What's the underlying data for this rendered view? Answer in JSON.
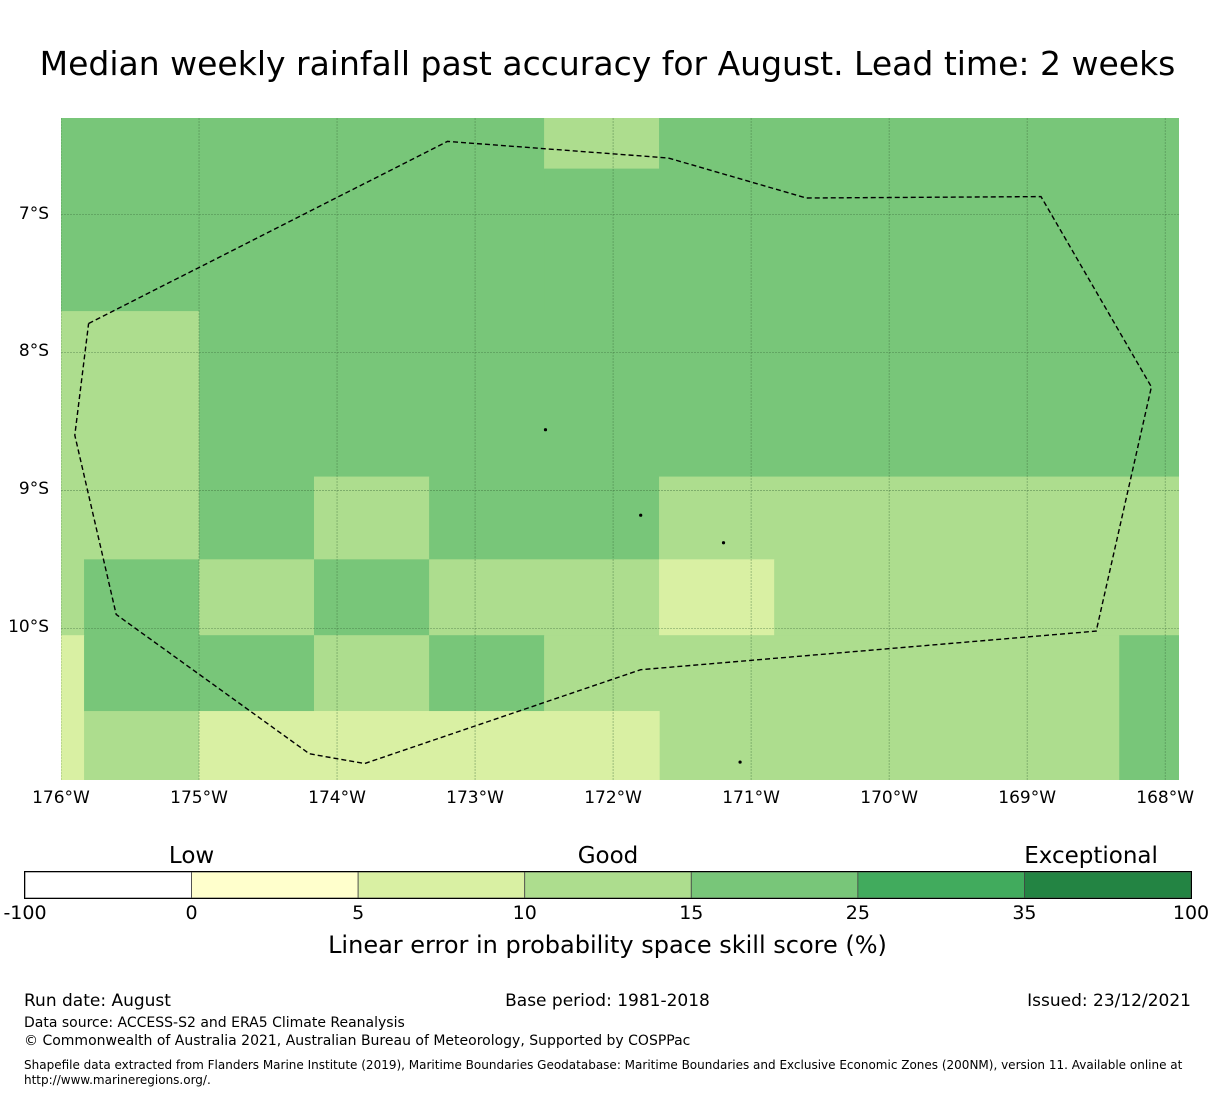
{
  "title": "Median weekly rainfall past accuracy for August. Lead time: 2 weeks",
  "map": {
    "lon_range": [
      -176,
      -167.9
    ],
    "lat_range": [
      -11.1,
      -6.3
    ],
    "y_ticks": [
      {
        "value": -7,
        "label": "7°S"
      },
      {
        "value": -8,
        "label": "8°S"
      },
      {
        "value": -9,
        "label": "9°S"
      },
      {
        "value": -10,
        "label": "10°S"
      }
    ],
    "x_ticks": [
      {
        "value": -176,
        "label": "176°W"
      },
      {
        "value": -175,
        "label": "175°W"
      },
      {
        "value": -174,
        "label": "174°W"
      },
      {
        "value": -173,
        "label": "173°W"
      },
      {
        "value": -172,
        "label": "172°W"
      },
      {
        "value": -171,
        "label": "171°W"
      },
      {
        "value": -170,
        "label": "170°W"
      },
      {
        "value": -169,
        "label": "169°W"
      },
      {
        "value": -168,
        "label": "168°W"
      }
    ],
    "grid": true,
    "cells": [
      {
        "lon": [
          -176,
          -172.5
        ],
        "lat": [
          -7.7,
          -6.3
        ],
        "cls": 4
      },
      {
        "lon": [
          -172.5,
          -171.667
        ],
        "lat": [
          -6.667,
          -6.3
        ],
        "cls": 3
      },
      {
        "lon": [
          -171.667,
          -167.9
        ],
        "lat": [
          -7.7,
          -6.3
        ],
        "cls": 4
      },
      {
        "lon": [
          -172.5,
          -171.667
        ],
        "lat": [
          -7.7,
          -6.667
        ],
        "cls": 4
      },
      {
        "lon": [
          -176,
          -175
        ],
        "lat": [
          -9.5,
          -7.7
        ],
        "cls": 3
      },
      {
        "lon": [
          -175,
          -167.9
        ],
        "lat": [
          -8.9,
          -7.7
        ],
        "cls": 4
      },
      {
        "lon": [
          -175,
          -174.167
        ],
        "lat": [
          -9.5,
          -8.9
        ],
        "cls": 4
      },
      {
        "lon": [
          -174.167,
          -173.333
        ],
        "lat": [
          -9.5,
          -8.9
        ],
        "cls": 3
      },
      {
        "lon": [
          -173.333,
          -171.667
        ],
        "lat": [
          -9.5,
          -8.9
        ],
        "cls": 4
      },
      {
        "lon": [
          -171.667,
          -167.9
        ],
        "lat": [
          -9.5,
          -8.9
        ],
        "cls": 3
      },
      {
        "lon": [
          -176,
          -175.833
        ],
        "lat": [
          -10.05,
          -9.5
        ],
        "cls": 3
      },
      {
        "lon": [
          -175.833,
          -175
        ],
        "lat": [
          -10.05,
          -9.5
        ],
        "cls": 4
      },
      {
        "lon": [
          -175,
          -174.167
        ],
        "lat": [
          -10.05,
          -9.5
        ],
        "cls": 3
      },
      {
        "lon": [
          -174.167,
          -173.333
        ],
        "lat": [
          -10.05,
          -9.5
        ],
        "cls": 4
      },
      {
        "lon": [
          -173.333,
          -171.667
        ],
        "lat": [
          -10.05,
          -9.5
        ],
        "cls": 3
      },
      {
        "lon": [
          -171.667,
          -170.833
        ],
        "lat": [
          -10.05,
          -9.5
        ],
        "cls": 2
      },
      {
        "lon": [
          -170.833,
          -167.9
        ],
        "lat": [
          -10.05,
          -9.5
        ],
        "cls": 3
      },
      {
        "lon": [
          -176,
          -175.833
        ],
        "lat": [
          -11.1,
          -10.05
        ],
        "cls": 2
      },
      {
        "lon": [
          -175.833,
          -174.167
        ],
        "lat": [
          -10.6,
          -10.05
        ],
        "cls": 4
      },
      {
        "lon": [
          -174.167,
          -173.333
        ],
        "lat": [
          -10.6,
          -10.05
        ],
        "cls": 3
      },
      {
        "lon": [
          -173.333,
          -172.5
        ],
        "lat": [
          -10.6,
          -10.05
        ],
        "cls": 4
      },
      {
        "lon": [
          -172.5,
          -168.333
        ],
        "lat": [
          -11.1,
          -10.05
        ],
        "cls": 3
      },
      {
        "lon": [
          -168.333,
          -167.9
        ],
        "lat": [
          -11.1,
          -10.05
        ],
        "cls": 4
      },
      {
        "lon": [
          -175.833,
          -175
        ],
        "lat": [
          -11.1,
          -10.6
        ],
        "cls": 3
      },
      {
        "lon": [
          -175,
          -172.5
        ],
        "lat": [
          -11.1,
          -10.6
        ],
        "cls": 2
      },
      {
        "lon": [
          -172.5,
          -171.667
        ],
        "lat": [
          -11.1,
          -10.6
        ],
        "cls": 2
      }
    ],
    "eez_boundary": [
      [
        -175.8,
        -7.79
      ],
      [
        -173.2,
        -6.47
      ],
      [
        -171.6,
        -6.59
      ],
      [
        -170.6,
        -6.88
      ],
      [
        -168.9,
        -6.87
      ],
      [
        -168.1,
        -8.25
      ],
      [
        -168.5,
        -10.02
      ],
      [
        -171.8,
        -10.3
      ],
      [
        -173.8,
        -10.98
      ],
      [
        -174.2,
        -10.91
      ],
      [
        -175.6,
        -9.9
      ],
      [
        -175.9,
        -8.6
      ],
      [
        -175.8,
        -7.79
      ]
    ],
    "islands": [
      {
        "lon": -172.49,
        "lat": -8.56
      },
      {
        "lon": -171.8,
        "lat": -9.18
      },
      {
        "lon": -171.2,
        "lat": -9.38
      },
      {
        "lon": -171.08,
        "lat": -10.97
      }
    ]
  },
  "colorbar": {
    "categories": [
      {
        "label": "Low",
        "at": 1
      },
      {
        "label": "Good",
        "at": 3.5
      },
      {
        "label": "Exceptional",
        "at": 6.4
      }
    ],
    "ticks": [
      "-100",
      "0",
      "5",
      "10",
      "15",
      "25",
      "35",
      "100"
    ],
    "colors": [
      "#ffffff",
      "#ffffcc",
      "#d9f0a3",
      "#addd8e",
      "#78c679",
      "#41ab5d",
      "#238443"
    ],
    "title": "Linear error in probability space skill score (%)"
  },
  "footer": {
    "run_date": "Run date: August",
    "base_period": "Base period: 1981-2018",
    "issued": "Issued: 23/12/2021",
    "data_source": "Data source: ACCESS-S2 and ERA5 Climate Reanalysis",
    "copyright": "© Commonwealth of Australia 2021, Australian Bureau of Meteorology, Supported by COSPPac",
    "shapefile": "Shapefile data extracted from Flanders Marine Institute (2019), Maritime Boundaries Geodatabase: Maritime Boundaries and Exclusive Economic Zones (200NM), version 11. Available online at http://www.marineregions.org/."
  }
}
